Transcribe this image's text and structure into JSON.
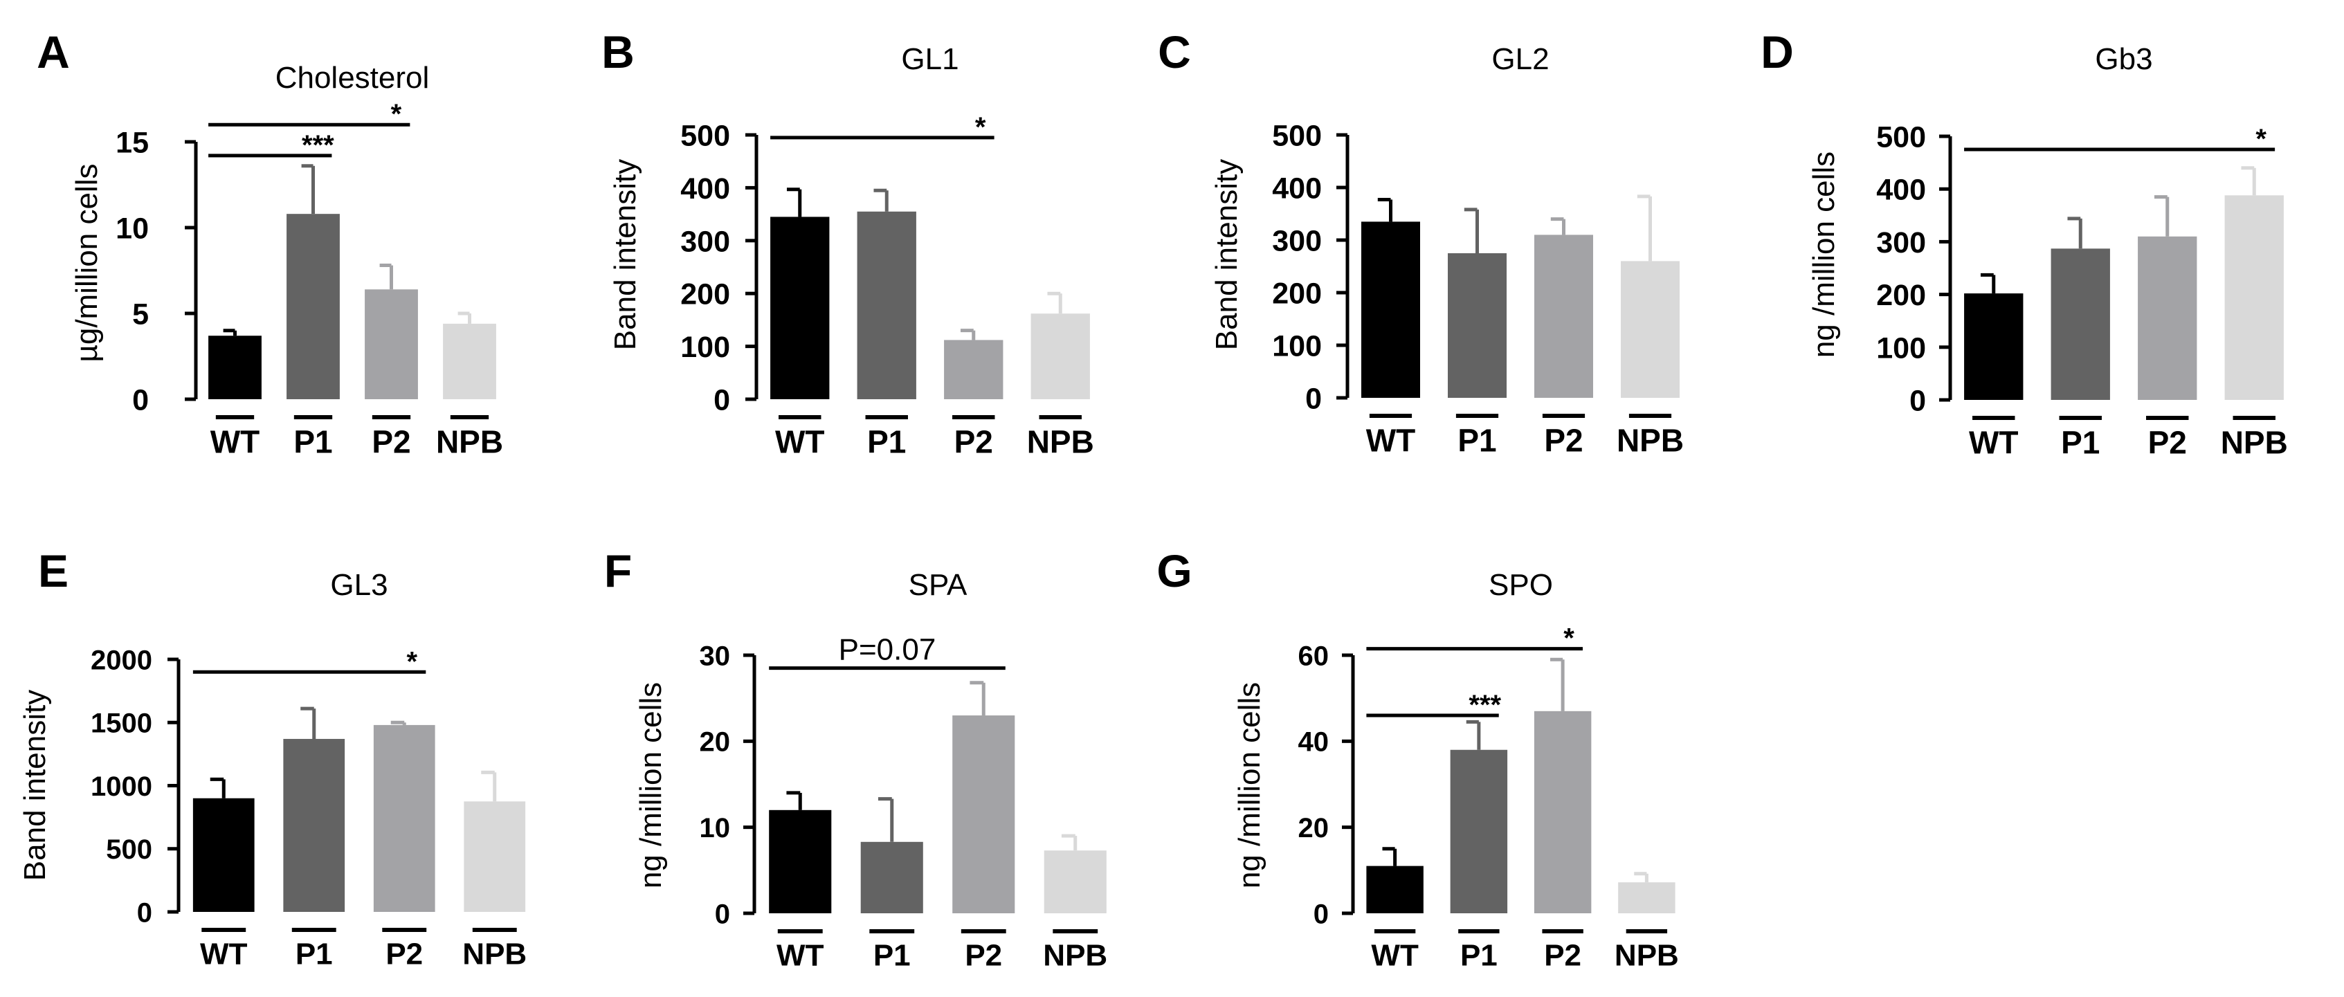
{
  "chart_data": [
    {
      "panel": "A",
      "type": "bar",
      "title": "Cholesterol",
      "ylabel": "µg/million cells",
      "categories": [
        "WT",
        "P1",
        "P2",
        "NPB"
      ],
      "values": [
        3.7,
        10.8,
        6.4,
        4.4
      ],
      "errors": [
        0.3,
        2.8,
        1.4,
        0.6
      ],
      "colors": [
        "#000000",
        "#636363",
        "#a3a3a6",
        "#d9d9d9"
      ],
      "ylim": [
        0,
        15
      ],
      "yticks": [
        0,
        5,
        10,
        15
      ],
      "annotations": [
        {
          "from": 0,
          "to": 1,
          "label": "***",
          "y": 14.2
        },
        {
          "from": 0,
          "to": 2,
          "label": "*",
          "y": 16.0
        }
      ]
    },
    {
      "panel": "B",
      "type": "bar",
      "title": "GL1",
      "ylabel": "Band intensity",
      "categories": [
        "WT",
        "P1",
        "P2",
        "NPB"
      ],
      "values": [
        345,
        355,
        112,
        162
      ],
      "errors": [
        52,
        40,
        18,
        38
      ],
      "colors": [
        "#000000",
        "#636363",
        "#a3a3a6",
        "#d9d9d9"
      ],
      "ylim": [
        0,
        500
      ],
      "yticks": [
        0,
        100,
        200,
        300,
        400,
        500
      ],
      "annotations": [
        {
          "from": 0,
          "to": 2,
          "label": "*",
          "y": 495
        }
      ]
    },
    {
      "panel": "C",
      "type": "bar",
      "title": "GL2",
      "ylabel": "Band intensity",
      "categories": [
        "WT",
        "P1",
        "P2",
        "NPB"
      ],
      "values": [
        335,
        275,
        310,
        260
      ],
      "errors": [
        42,
        83,
        30,
        123
      ],
      "colors": [
        "#000000",
        "#636363",
        "#a3a3a6",
        "#d9d9d9"
      ],
      "ylim": [
        0,
        500
      ],
      "yticks": [
        0,
        100,
        200,
        300,
        400,
        500
      ],
      "annotations": []
    },
    {
      "panel": "D",
      "type": "bar",
      "title": "Gb3",
      "ylabel": "ng /million cells",
      "categories": [
        "WT",
        "P1",
        "P2",
        "NPB"
      ],
      "values": [
        202,
        287,
        310,
        388
      ],
      "errors": [
        35,
        57,
        75,
        52
      ],
      "colors": [
        "#000000",
        "#636363",
        "#a3a3a6",
        "#d9d9d9"
      ],
      "ylim": [
        0,
        500
      ],
      "yticks": [
        0,
        100,
        200,
        300,
        400,
        500
      ],
      "annotations": [
        {
          "from": 0,
          "to": 3,
          "label": "*",
          "y": 475
        }
      ]
    },
    {
      "panel": "E",
      "type": "bar",
      "title": "GL3",
      "ylabel": "Band intensity",
      "categories": [
        "WT",
        "P1",
        "P2",
        "NPB"
      ],
      "values": [
        900,
        1370,
        1480,
        875
      ],
      "errors": [
        150,
        240,
        20,
        230
      ],
      "colors": [
        "#000000",
        "#636363",
        "#a3a3a6",
        "#d9d9d9"
      ],
      "ylim": [
        0,
        2000
      ],
      "yticks": [
        0,
        500,
        1000,
        1500,
        2000
      ],
      "annotations": [
        {
          "from": 0,
          "to": 2,
          "label": "*",
          "y": 1900
        }
      ]
    },
    {
      "panel": "F",
      "type": "bar",
      "title": "SPA",
      "ylabel": "ng /million cells",
      "categories": [
        "WT",
        "P1",
        "P2",
        "NPB"
      ],
      "values": [
        12,
        8.3,
        23,
        7.3
      ],
      "errors": [
        2,
        5,
        3.8,
        1.7
      ],
      "colors": [
        "#000000",
        "#636363",
        "#a3a3a6",
        "#d9d9d9"
      ],
      "ylim": [
        0,
        30
      ],
      "yticks": [
        0,
        10,
        20,
        30
      ],
      "annotations": [
        {
          "from": 0,
          "to": 2,
          "label": "P=0.07",
          "y": 28.5
        }
      ]
    },
    {
      "panel": "G",
      "type": "bar",
      "title": "SPO",
      "ylabel": "ng /million cells",
      "categories": [
        "WT",
        "P1",
        "P2",
        "NPB"
      ],
      "values": [
        11,
        38,
        47,
        7.2
      ],
      "errors": [
        4,
        6.5,
        12,
        2
      ],
      "colors": [
        "#000000",
        "#636363",
        "#a3a3a6",
        "#d9d9d9"
      ],
      "ylim": [
        0,
        60
      ],
      "yticks": [
        0,
        20,
        40,
        60
      ],
      "annotations": [
        {
          "from": 0,
          "to": 1,
          "label": "***",
          "y": 46
        },
        {
          "from": 0,
          "to": 2,
          "label": "*",
          "y": 61.5
        }
      ]
    }
  ]
}
